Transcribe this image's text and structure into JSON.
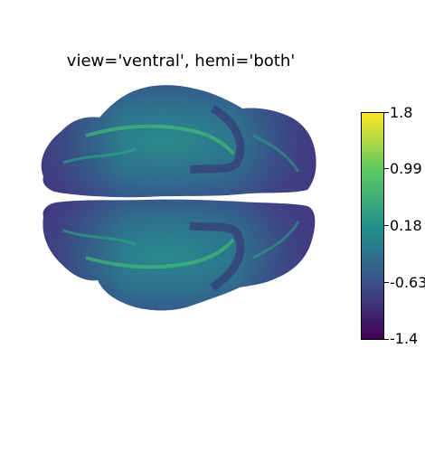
{
  "title": "view='ventral', hemi='both'",
  "colorbar": {
    "colormap": "viridis",
    "colors": [
      "#440154",
      "#3b528b",
      "#21918c",
      "#5ec962",
      "#fde725"
    ],
    "ticks": [
      "1.8",
      "0.99",
      "0.18",
      "-0.63",
      "-1.4"
    ]
  },
  "figure": {
    "view": "ventral",
    "hemispheres": [
      "upper",
      "lower"
    ]
  }
}
